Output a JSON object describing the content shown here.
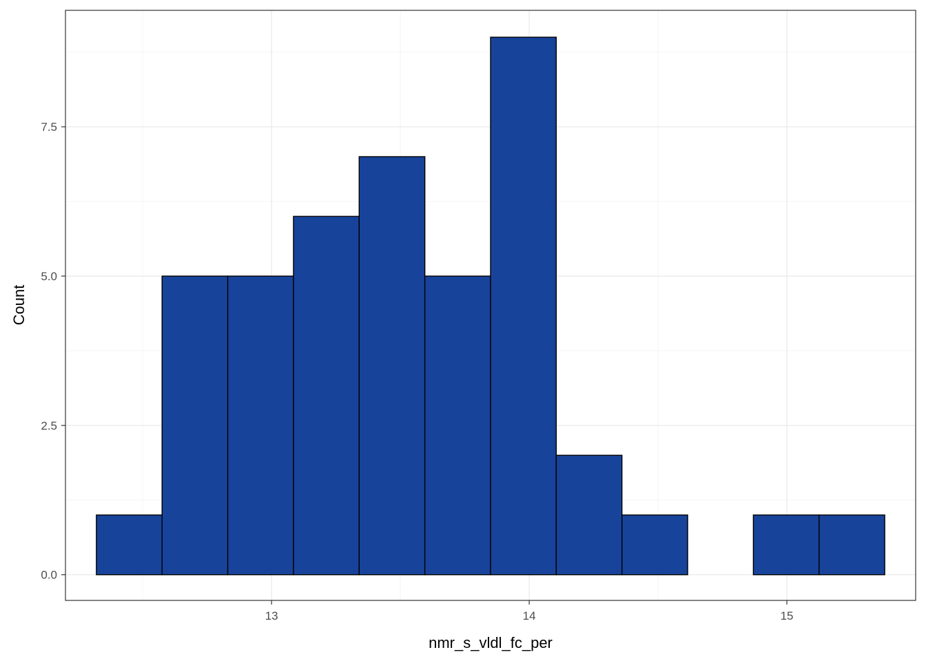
{
  "chart_data": {
    "type": "bar",
    "subtype": "histogram",
    "title": "",
    "xlabel": "nmr_s_vldl_fc_per",
    "ylabel": "Count",
    "xlim": [
      12.2,
      15.5
    ],
    "ylim": [
      -0.43,
      9.45
    ],
    "x_ticks": [
      13,
      14,
      15
    ],
    "x_tick_labels": [
      "13",
      "14",
      "15"
    ],
    "y_ticks": [
      0,
      2.5,
      5,
      7.5
    ],
    "y_tick_labels": [
      "0.0",
      "2.5",
      "5.0",
      "7.5"
    ],
    "x_minor_gridlines": [
      12.5,
      13.5,
      14.5,
      15.5
    ],
    "y_minor_gridlines": [
      1.25,
      3.75,
      6.25,
      8.75
    ],
    "grid": true,
    "legend": "none",
    "bin_edges": [
      12.32,
      12.575,
      12.83,
      13.085,
      13.34,
      13.595,
      13.85,
      14.105,
      14.36,
      14.615,
      14.87,
      15.125,
      15.38
    ],
    "values": [
      1,
      5,
      5,
      6,
      7,
      5,
      9,
      2,
      1,
      0,
      1,
      1
    ],
    "colors": {
      "bar_fill": "#18439A",
      "bar_stroke": "#000000",
      "panel_border": "#333333",
      "grid_major": "#ebebeb",
      "grid_minor": "#f4f4f4",
      "tick_text": "#4d4d4d",
      "axis_title": "#000000"
    }
  }
}
